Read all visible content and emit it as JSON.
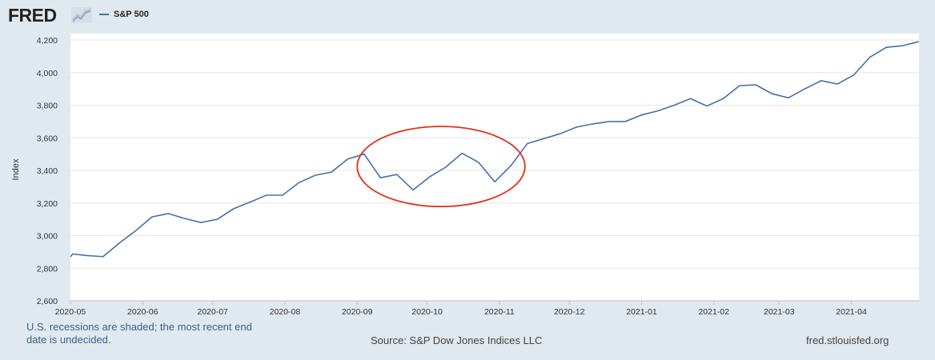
{
  "header": {
    "logo_text": "FRED",
    "logo_icon": "line-chart-icon"
  },
  "colors": {
    "series": "#4572a7",
    "annotation": "#e0321e",
    "background": "#e1e9f0",
    "plot_background": "#ffffff",
    "note_text": "#3b5e8c"
  },
  "footer": {
    "note": "U.S. recessions are shaded; the most recent end date is undecided.",
    "source": "Source: S&P Dow Jones Indices LLC",
    "site": "fred.stlouisfed.org"
  },
  "chart_data": {
    "type": "line",
    "title": "",
    "xlabel": "",
    "ylabel": "Index",
    "ylim": [
      2600,
      4200
    ],
    "xlim": [
      "2020-05-01",
      "2021-04-30"
    ],
    "yticks": [
      "2,600",
      "2,800",
      "3,000",
      "3,200",
      "3,400",
      "3,600",
      "3,800",
      "4,000",
      "4,200"
    ],
    "xticks": [
      "2020-05",
      "2020-06",
      "2020-07",
      "2020-08",
      "2020-09",
      "2020-10",
      "2020-11",
      "2020-12",
      "2021-01",
      "2021-02",
      "2021-03",
      "2021-04"
    ],
    "grid": true,
    "legend_placement": "top-left",
    "series": [
      {
        "name": "S&P 500",
        "x": [
          "2020-05-01",
          "2020-05-02",
          "2020-05-08",
          "2020-05-15",
          "2020-05-22",
          "2020-05-29",
          "2020-06-05",
          "2020-06-12",
          "2020-06-19",
          "2020-06-26",
          "2020-07-03",
          "2020-07-10",
          "2020-07-17",
          "2020-07-24",
          "2020-07-31",
          "2020-08-07",
          "2020-08-14",
          "2020-08-21",
          "2020-08-28",
          "2020-09-04",
          "2020-09-11",
          "2020-09-18",
          "2020-09-25",
          "2020-10-02",
          "2020-10-09",
          "2020-10-16",
          "2020-10-23",
          "2020-10-30",
          "2020-11-06",
          "2020-11-13",
          "2020-11-20",
          "2020-11-27",
          "2020-12-04",
          "2020-12-11",
          "2020-12-18",
          "2020-12-25",
          "2021-01-01",
          "2021-01-08",
          "2021-01-15",
          "2021-01-22",
          "2021-01-29",
          "2021-02-05",
          "2021-02-12",
          "2021-02-19",
          "2021-02-26",
          "2021-03-05",
          "2021-03-12",
          "2021-03-19",
          "2021-03-26",
          "2021-04-02",
          "2021-04-09",
          "2021-04-16",
          "2021-04-23",
          "2021-04-30"
        ],
        "values": [
          2870,
          2887,
          2878,
          2871,
          2955,
          3030,
          3115,
          3135,
          3105,
          3080,
          3100,
          3165,
          3205,
          3248,
          3248,
          3325,
          3370,
          3390,
          3470,
          3500,
          3355,
          3375,
          3280,
          3360,
          3420,
          3505,
          3450,
          3330,
          3430,
          3565,
          3595,
          3625,
          3665,
          3685,
          3700,
          3700,
          3740,
          3765,
          3800,
          3840,
          3795,
          3840,
          3920,
          3925,
          3870,
          3845,
          3900,
          3950,
          3930,
          3985,
          4095,
          4155,
          4165,
          4190
        ]
      }
    ],
    "annotations": [
      {
        "type": "ellipse",
        "label": "",
        "x_range": [
          "2020-09-01",
          "2020-11-12"
        ],
        "y_range": [
          3178,
          3670
        ]
      }
    ]
  }
}
